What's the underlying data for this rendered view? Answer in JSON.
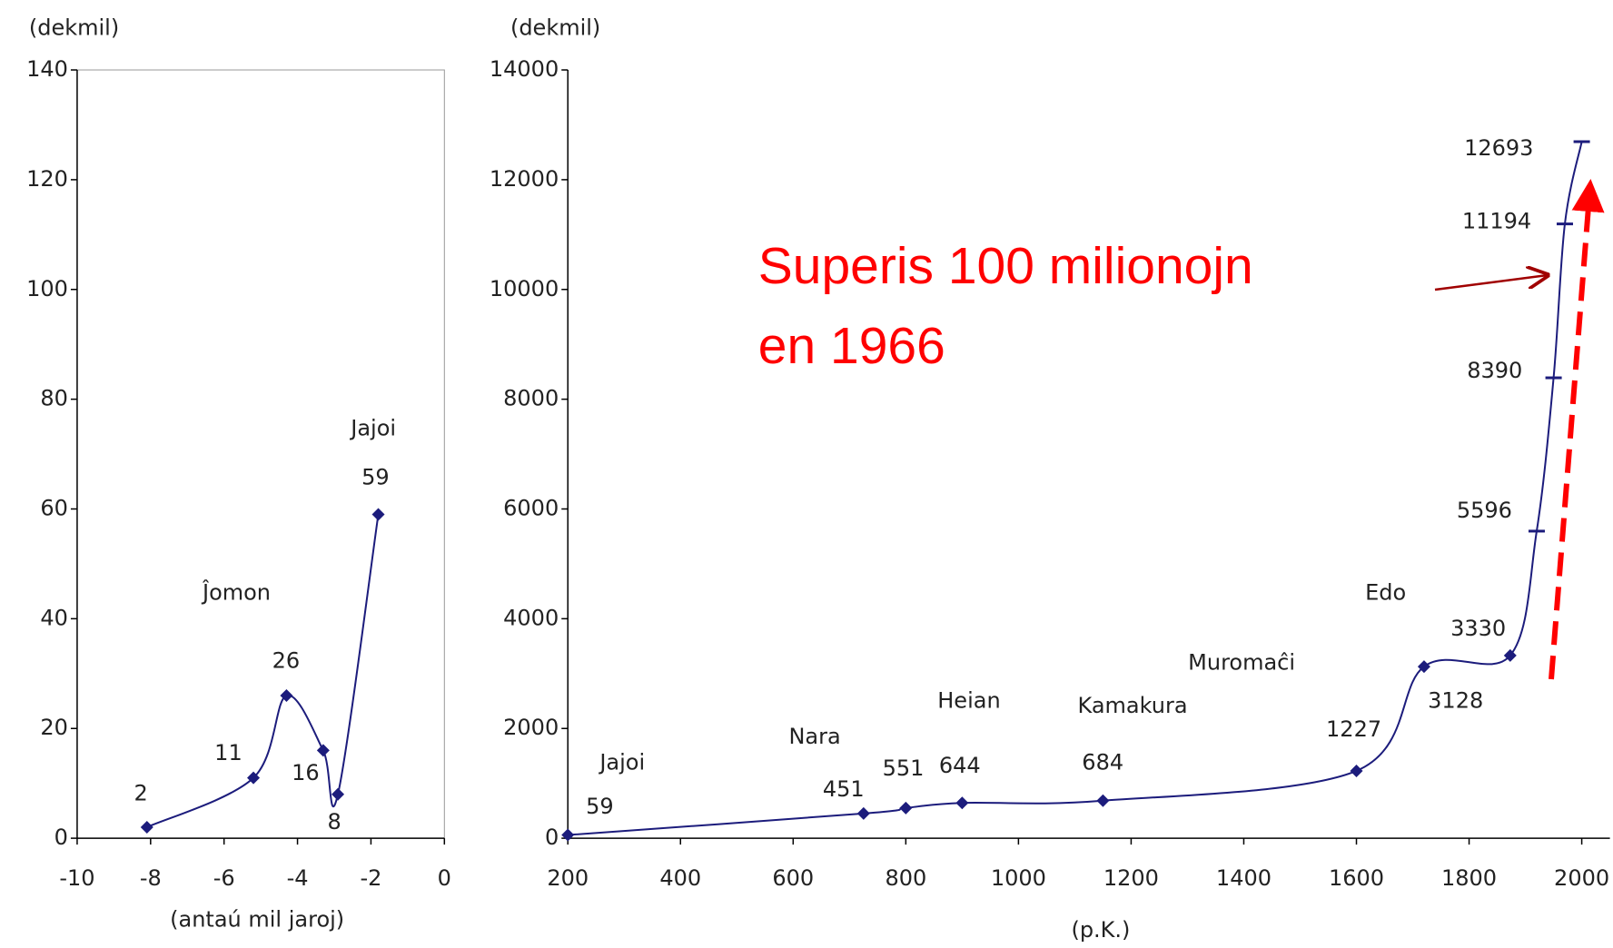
{
  "charts": [
    {
      "type": "line",
      "y_label": "(dekmil)",
      "x_label": "(antaú mil jaroj)",
      "x": [
        -8.1,
        -5.2,
        -4.3,
        -3.3,
        -2.9,
        -1.8
      ],
      "values": [
        2,
        11,
        26,
        16,
        8,
        59
      ],
      "color": "#1c1c7c",
      "markers": [
        "diamond",
        "diamond",
        "diamond",
        "diamond",
        "diamond",
        "diamond"
      ],
      "xlim": [
        -10,
        0
      ],
      "xticks": [
        -10,
        -8,
        -6,
        -4,
        -2,
        0
      ],
      "ylim": [
        0,
        140
      ],
      "yticks": [
        0,
        20,
        40,
        60,
        80,
        100,
        120,
        140
      ],
      "annotations": [
        "Jajoi",
        "Ĵomon"
      ]
    },
    {
      "type": "line",
      "y_label": "(dekmil)",
      "x_label": "(p.K.)",
      "x": [
        200,
        725,
        800,
        900,
        1150,
        1600,
        1720,
        1873,
        1920,
        1950,
        1970,
        2000
      ],
      "values": [
        59,
        451,
        551,
        644,
        684,
        1227,
        3128,
        3330,
        5596,
        8390,
        11194,
        12693
      ],
      "color": "#1c1c7c",
      "markers": [
        "diamond",
        "diamond",
        "diamond",
        "diamond",
        "diamond",
        "diamond",
        "diamond",
        "diamond",
        "dash",
        "dash",
        "dash",
        "dash"
      ],
      "xlim": [
        200,
        2050
      ],
      "xticks": [
        200,
        400,
        600,
        800,
        1000,
        1200,
        1400,
        1600,
        1800,
        2000
      ],
      "ylim": [
        0,
        14000
      ],
      "yticks": [
        0,
        2000,
        4000,
        6000,
        8000,
        10000,
        12000,
        14000
      ],
      "annotations": [
        "Jajoi",
        "Nara",
        "Heian",
        "Kamakura",
        "Muromaĉi",
        "Edo"
      ],
      "callout": [
        "Superis 100 milionojn",
        "en 1966"
      ]
    }
  ]
}
